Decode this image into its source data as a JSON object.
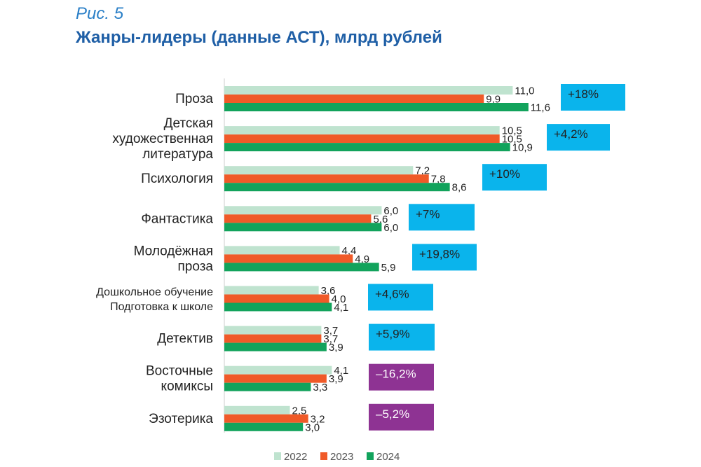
{
  "figure": {
    "label": "Рис. 5",
    "title": "Жанры-лидеры (данные АСТ), млрд рублей"
  },
  "colors": {
    "s2022": "#bfe3cf",
    "s2023": "#f05a28",
    "s2024": "#12a35c",
    "positive": "#0ab4ec",
    "negative": "#8e3393",
    "axis": "#cccccc"
  },
  "chart_data": {
    "type": "bar",
    "orientation": "horizontal",
    "title": "Жанры-лидеры (данные АСТ), млрд рублей",
    "categories": [
      [
        "Проза"
      ],
      [
        "Детская",
        "художественная",
        "литература"
      ],
      [
        "Психология"
      ],
      [
        "Фантастика"
      ],
      [
        "Молодёжная",
        "проза"
      ],
      [
        "Дошкольное обучение",
        "Подготовка к школе"
      ],
      [
        "Детектив"
      ],
      [
        "Восточные",
        "комиксы"
      ],
      [
        "Эзотерика"
      ]
    ],
    "series": [
      {
        "name": "2022",
        "values": [
          11.0,
          10.5,
          7.2,
          6.0,
          4.4,
          3.6,
          3.7,
          4.1,
          2.5
        ],
        "labels": [
          "11,0",
          "10,5",
          "7,2",
          "6,0",
          "4,4",
          "3,6",
          "3,7",
          "4,1",
          "2,5"
        ]
      },
      {
        "name": "2023",
        "values": [
          9.9,
          10.5,
          7.8,
          5.6,
          4.9,
          4.0,
          3.7,
          3.9,
          3.2
        ],
        "labels": [
          "9,9",
          "10,5",
          "7,8",
          "5,6",
          "4,9",
          "4,0",
          "3,7",
          "3,9",
          "3,2"
        ]
      },
      {
        "name": "2024",
        "values": [
          11.6,
          10.9,
          8.6,
          6.0,
          5.9,
          4.1,
          3.9,
          3.3,
          3.0
        ],
        "labels": [
          "11,6",
          "10,9",
          "8,6",
          "6,0",
          "5,9",
          "4,1",
          "3,9",
          "3,3",
          "3,0"
        ]
      }
    ],
    "changes": [
      {
        "text": "+18%",
        "sign": "positive"
      },
      {
        "text": "+4,2%",
        "sign": "positive"
      },
      {
        "text": "+10%",
        "sign": "positive"
      },
      {
        "text": "+7%",
        "sign": "positive"
      },
      {
        "text": "+19,8%",
        "sign": "positive"
      },
      {
        "text": "+4,6%",
        "sign": "positive"
      },
      {
        "text": "+5,9%",
        "sign": "positive"
      },
      {
        "text": "–16,2%",
        "sign": "negative"
      },
      {
        "text": "–5,2%",
        "sign": "negative"
      }
    ],
    "xlim": [
      0,
      12
    ],
    "legend": [
      "2022",
      "2023",
      "2024"
    ],
    "legend_position": "bottom"
  }
}
